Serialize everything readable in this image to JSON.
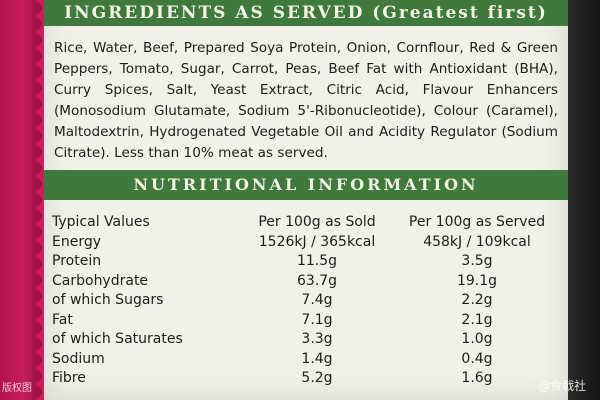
{
  "header": {
    "title": "INGREDIENTS AS SERVED (Greatest first)"
  },
  "ingredients": {
    "text": "Rice, Water, Beef, Prepared Soya Protein, Onion, Cornflour, Red & Green Peppers, Tomato, Sugar, Carrot, Peas, Beef Fat with Antioxidant (BHA), Curry Spices, Salt, Yeast Extract, Citric Acid, Flavour Enhancers (Monosodium Glutamate, Sodium 5'-Ribonucleotide), Colour (Caramel), Maltodextrin, Hydrogenated Vegetable Oil and Acidity Regulator (Sodium Citrate). Less than 10% meat as served."
  },
  "nutrition": {
    "title": "NUTRITIONAL INFORMATION",
    "columns": [
      "Typical Values",
      "Per 100g as Sold",
      "Per 100g as Served"
    ],
    "rows": [
      {
        "name": "Energy",
        "sold": "1526kJ / 365kcal",
        "served": "458kJ / 109kcal"
      },
      {
        "name": "Protein",
        "sold": "11.5g",
        "served": "3.5g"
      },
      {
        "name": "Carbohydrate",
        "sold": "63.7g",
        "served": "19.1g"
      },
      {
        "name": "of which Sugars",
        "sold": "7.4g",
        "served": "2.2g"
      },
      {
        "name": "Fat",
        "sold": "7.1g",
        "served": "2.1g"
      },
      {
        "name": "of which Saturates",
        "sold": "3.3g",
        "served": "1.0g"
      },
      {
        "name": "Sodium",
        "sold": "1.4g",
        "served": "0.4g"
      },
      {
        "name": "Fibre",
        "sold": "5.2g",
        "served": "1.6g"
      }
    ]
  },
  "watermarks": {
    "left": "版权图",
    "right": "@食戟社"
  },
  "colors": {
    "band_green": "#3f7a3c",
    "label_bg": "#f2f1e8",
    "edge_magenta": "#c81e5d"
  }
}
